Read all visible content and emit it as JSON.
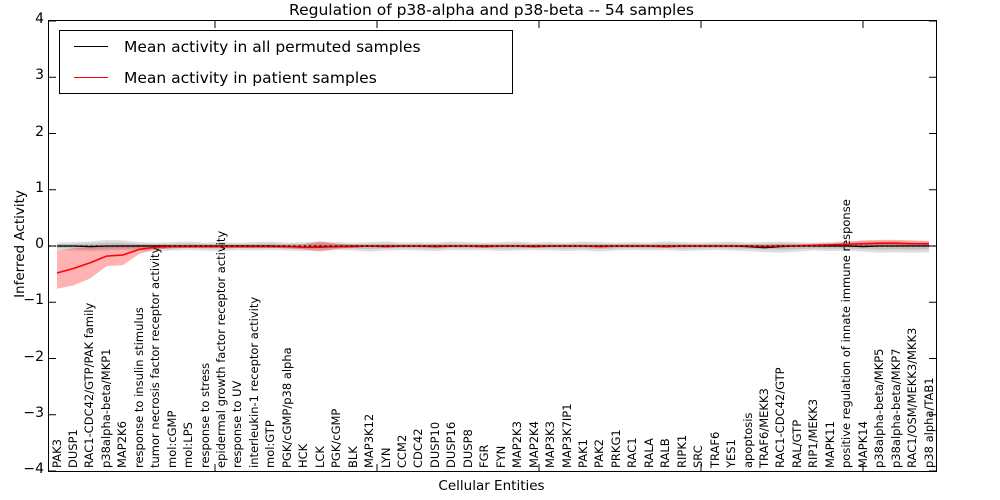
{
  "title": "Regulation of p38-alpha and p38-beta -- 54 samples",
  "axes": {
    "ylabel": "Inferred Activity",
    "xlabel": "Cellular Entities",
    "ytick_labels": [
      "4",
      "3",
      "2",
      "1",
      "0",
      "−1",
      "−2",
      "−3",
      "−4"
    ],
    "ytick_values": [
      4,
      3,
      2,
      1,
      0,
      -1,
      -2,
      -3,
      -4
    ]
  },
  "legend": {
    "position": "upper left",
    "entries": [
      {
        "label": "Mean activity in all permuted samples",
        "color": "#000000"
      },
      {
        "label": "Mean activity in patient samples",
        "color": "#ff0000"
      }
    ]
  },
  "colors": {
    "permuted_line": "#000000",
    "permuted_band": "rgba(0,0,0,0.13)",
    "patient_line": "#ff0000",
    "patient_band": "rgba(255,0,0,0.30)",
    "zero_line": "#000000"
  },
  "chart_data": {
    "type": "line",
    "title": "Regulation of p38-alpha and p38-beta -- 54 samples",
    "xlabel": "Cellular Entities",
    "ylabel": "Inferred Activity",
    "ylim": [
      -4,
      4
    ],
    "grid": false,
    "legend_position": "upper left",
    "categories": [
      "PAK3",
      "DUSP1",
      "RAC1-CDC42/GTP/PAK family",
      "p38alpha-beta/MKP1",
      "MAP2K6",
      "response to insulin stimulus",
      "tumor necrosis factor receptor activity",
      "mol:cGMP",
      "mol:LPS",
      "response to stress",
      "epidermal growth factor receptor activity",
      "response to UV",
      "interleukin-1 receptor activity",
      "mol:GTP",
      "PGK/cGMP/p38 alpha",
      "HCK",
      "LCK",
      "PGK/cGMP",
      "BLK",
      "MAP3K12",
      "LYN",
      "CCM2",
      "CDC42",
      "DUSP10",
      "DUSP16",
      "DUSP8",
      "FGR",
      "FYN",
      "MAP2K3",
      "MAP2K4",
      "MAP3K3",
      "MAP3K7IP1",
      "PAK1",
      "PAK2",
      "PRKG1",
      "RAC1",
      "RALA",
      "RALB",
      "RIPK1",
      "SRC",
      "TRAF6",
      "YES1",
      "apoptosis",
      "TRAF6/MEKK3",
      "RAC1-CDC42/GTP",
      "RAL/GTP",
      "RIP1/MEKK3",
      "MAPK11",
      "positive regulation of innate immune response",
      "MAPK14",
      "p38alpha-beta/MKP5",
      "p38alpha-beta/MKP7",
      "RAC1/OSM/MEKK3/MKK3",
      "p38 alpha/TAB1"
    ],
    "series": [
      {
        "name": "Mean activity in all permuted samples",
        "color": "#000000",
        "values": [
          0,
          0,
          -0.01,
          0,
          0,
          0,
          0,
          0,
          0,
          0,
          0,
          0,
          0,
          0,
          -0.01,
          -0.02,
          -0.02,
          -0.01,
          0,
          0,
          0,
          0,
          0,
          0,
          0,
          0,
          0,
          0,
          0,
          0,
          0,
          0,
          0,
          0,
          0,
          0,
          0,
          0,
          0,
          0,
          0,
          0,
          -0.01,
          -0.03,
          -0.01,
          0,
          0,
          0,
          0,
          -0.01,
          0,
          0,
          0,
          0
        ],
        "band_lo": [
          -0.07,
          -0.08,
          -0.09,
          -0.08,
          -0.07,
          -0.08,
          -0.1,
          -0.08,
          -0.07,
          -0.08,
          -0.09,
          -0.07,
          -0.08,
          -0.07,
          -0.08,
          -0.09,
          -0.08,
          -0.07,
          -0.08,
          -0.1,
          -0.08,
          -0.07,
          -0.08,
          -0.09,
          -0.07,
          -0.08,
          -0.07,
          -0.09,
          -0.08,
          -0.07,
          -0.08,
          -0.09,
          -0.08,
          -0.1,
          -0.08,
          -0.07,
          -0.08,
          -0.07,
          -0.09,
          -0.08,
          -0.07,
          -0.08,
          -0.09,
          -0.11,
          -0.12,
          -0.1,
          -0.08,
          -0.09,
          -0.08,
          -0.1,
          -0.12,
          -0.11,
          -0.12,
          -0.11
        ],
        "band_hi": [
          0.06,
          0.07,
          0.08,
          0.11,
          0.1,
          0.07,
          0.06,
          0.07,
          0.08,
          0.06,
          0.07,
          0.06,
          0.07,
          0.08,
          0.06,
          0.07,
          0.08,
          0.07,
          0.06,
          0.07,
          0.08,
          0.06,
          0.07,
          0.06,
          0.08,
          0.07,
          0.06,
          0.07,
          0.08,
          0.06,
          0.07,
          0.06,
          0.08,
          0.07,
          0.06,
          0.07,
          0.06,
          0.08,
          0.07,
          0.06,
          0.07,
          0.08,
          0.06,
          0.07,
          0.08,
          0.07,
          0.06,
          0.07,
          0.08,
          0.09,
          0.08,
          0.09,
          0.08,
          0.08
        ]
      },
      {
        "name": "Mean activity in patient samples",
        "color": "#ff0000",
        "values": [
          -0.48,
          -0.4,
          -0.3,
          -0.18,
          -0.16,
          -0.06,
          -0.02,
          -0.01,
          -0.01,
          -0.01,
          -0.01,
          -0.01,
          -0.01,
          -0.01,
          -0.01,
          -0.02,
          -0.01,
          -0.01,
          -0.01,
          0,
          -0.01,
          0,
          0,
          -0.01,
          0,
          0,
          -0.01,
          0,
          0,
          -0.01,
          0,
          0,
          0,
          -0.01,
          0,
          0,
          0,
          -0.01,
          0,
          0,
          0,
          0,
          0,
          -0.01,
          0,
          0,
          0.01,
          0.02,
          0.03,
          0.04,
          0.05,
          0.05,
          0.04,
          0.04
        ],
        "band_lo": [
          -0.76,
          -0.7,
          -0.58,
          -0.36,
          -0.34,
          -0.14,
          -0.06,
          -0.04,
          -0.03,
          -0.03,
          -0.03,
          -0.03,
          -0.03,
          -0.03,
          -0.04,
          -0.06,
          -0.1,
          -0.05,
          -0.03,
          -0.02,
          -0.03,
          -0.02,
          -0.02,
          -0.03,
          -0.02,
          -0.02,
          -0.03,
          -0.02,
          -0.02,
          -0.03,
          -0.02,
          -0.02,
          -0.02,
          -0.03,
          -0.02,
          -0.02,
          -0.02,
          -0.03,
          -0.02,
          -0.02,
          -0.02,
          -0.02,
          -0.02,
          -0.03,
          -0.02,
          -0.02,
          -0.01,
          0.0,
          0.0,
          0.0,
          0.0,
          0.0,
          0.0,
          -0.01
        ],
        "band_hi": [
          -0.08,
          -0.04,
          -0.02,
          0.01,
          0.02,
          0.02,
          0.02,
          0.02,
          0.02,
          0.02,
          0.02,
          0.02,
          0.02,
          0.02,
          0.02,
          0.03,
          0.08,
          0.04,
          0.02,
          0.02,
          0.02,
          0.02,
          0.02,
          0.02,
          0.02,
          0.02,
          0.02,
          0.02,
          0.02,
          0.02,
          0.02,
          0.02,
          0.02,
          0.02,
          0.02,
          0.02,
          0.02,
          0.02,
          0.02,
          0.02,
          0.02,
          0.02,
          0.02,
          0.02,
          0.03,
          0.03,
          0.04,
          0.05,
          0.07,
          0.1,
          0.11,
          0.11,
          0.1,
          0.09
        ]
      }
    ],
    "reference_line": {
      "y": 0,
      "style": "dashed",
      "color": "#000000"
    }
  }
}
